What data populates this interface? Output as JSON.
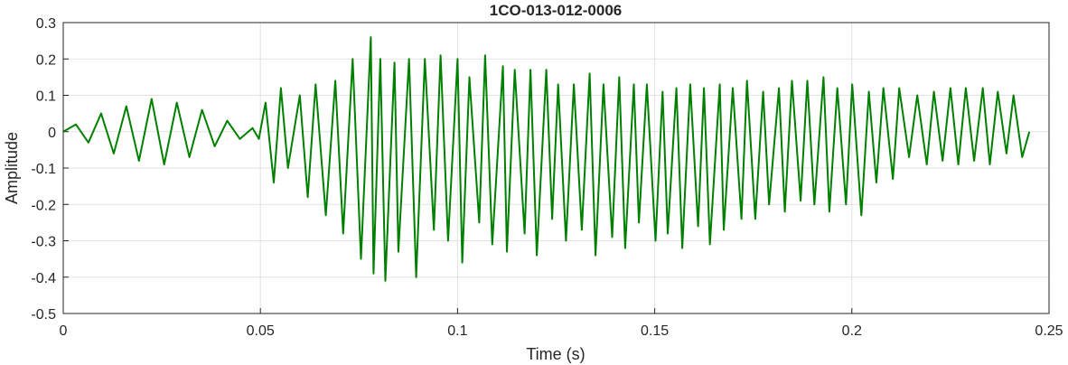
{
  "chart_data": {
    "type": "line",
    "title": "1CO-013-012-0006",
    "xlabel": "Time (s)",
    "ylabel": "Amplitude",
    "xlim": [
      0,
      0.25
    ],
    "ylim": [
      -0.5,
      0.3
    ],
    "x_ticks": [
      "0",
      "0.05",
      "0.1",
      "0.15",
      "0.2",
      "0.25"
    ],
    "y_ticks": [
      "0.3",
      "0.2",
      "0.1",
      "0",
      "-0.1",
      "-0.2",
      "-0.3",
      "-0.4",
      "-0.5"
    ],
    "grid": true,
    "line_color": "#008000",
    "series": [
      {
        "x": [
          0,
          0.0032,
          0.0064,
          0.0096,
          0.0128,
          0.016,
          0.0192,
          0.0224,
          0.0256,
          0.0288,
          0.032,
          0.0352,
          0.0384,
          0.0416,
          0.0448,
          0.048,
          0.0496,
          0.0513,
          0.0534,
          0.0552,
          0.057,
          0.06,
          0.062,
          0.064,
          0.0666,
          0.069,
          0.071,
          0.0734,
          0.0755,
          0.078,
          0.0787,
          0.0804,
          0.0817,
          0.084,
          0.085,
          0.0877,
          0.0895,
          0.0917,
          0.094,
          0.0957,
          0.0976,
          0.1,
          0.1012,
          0.103,
          0.1055,
          0.107,
          0.1088,
          0.1115,
          0.1125,
          0.1145,
          0.117,
          0.1185,
          0.1201,
          0.1225,
          0.124,
          0.1255,
          0.1275,
          0.1295,
          0.1315,
          0.1335,
          0.135,
          0.137,
          0.1392,
          0.141,
          0.1425,
          0.1447,
          0.146,
          0.148,
          0.1502,
          0.152,
          0.1533,
          0.1555,
          0.157,
          0.159,
          0.161,
          0.1625,
          0.164,
          0.1665,
          0.1675,
          0.1698,
          0.172,
          0.1734,
          0.1755,
          0.1775,
          0.179,
          0.1815,
          0.183,
          0.1848,
          0.187,
          0.1887,
          0.1905,
          0.1928,
          0.1943,
          0.1963,
          0.1985,
          0.2001,
          0.2024,
          0.2043,
          0.2062,
          0.208,
          0.2104,
          0.212,
          0.2145,
          0.2166,
          0.219,
          0.2208,
          0.223,
          0.225,
          0.227,
          0.2289,
          0.231,
          0.2332,
          0.235,
          0.237,
          0.2392,
          0.241,
          0.2432,
          0.245
        ],
        "values": [
          0,
          0.02,
          -0.03,
          0.05,
          -0.06,
          0.07,
          -0.08,
          0.09,
          -0.09,
          0.08,
          -0.07,
          0.06,
          -0.04,
          0.03,
          -0.02,
          0.01,
          -0.02,
          0.08,
          -0.14,
          0.12,
          -0.1,
          0.1,
          -0.18,
          0.13,
          -0.23,
          0.14,
          -0.28,
          0.2,
          -0.35,
          0.26,
          -0.39,
          0.2,
          -0.41,
          0.19,
          -0.33,
          0.2,
          -0.4,
          0.2,
          -0.27,
          0.21,
          -0.3,
          0.2,
          -0.36,
          0.15,
          -0.25,
          0.21,
          -0.31,
          0.18,
          -0.33,
          0.17,
          -0.28,
          0.17,
          -0.34,
          0.17,
          -0.24,
          0.13,
          -0.3,
          0.13,
          -0.27,
          0.16,
          -0.34,
          0.13,
          -0.29,
          0.15,
          -0.32,
          0.13,
          -0.25,
          0.13,
          -0.3,
          0.11,
          -0.28,
          0.12,
          -0.32,
          0.13,
          -0.26,
          0.12,
          -0.31,
          0.13,
          -0.27,
          0.12,
          -0.24,
          0.14,
          -0.24,
          0.11,
          -0.2,
          0.12,
          -0.22,
          0.14,
          -0.19,
          0.14,
          -0.2,
          0.15,
          -0.22,
          0.12,
          -0.2,
          0.13,
          -0.23,
          0.11,
          -0.14,
          0.12,
          -0.13,
          0.12,
          -0.07,
          0.1,
          -0.09,
          0.11,
          -0.08,
          0.12,
          -0.09,
          0.12,
          -0.08,
          0.12,
          -0.09,
          0.11,
          -0.06,
          0.1,
          -0.07,
          0
        ]
      }
    ]
  }
}
